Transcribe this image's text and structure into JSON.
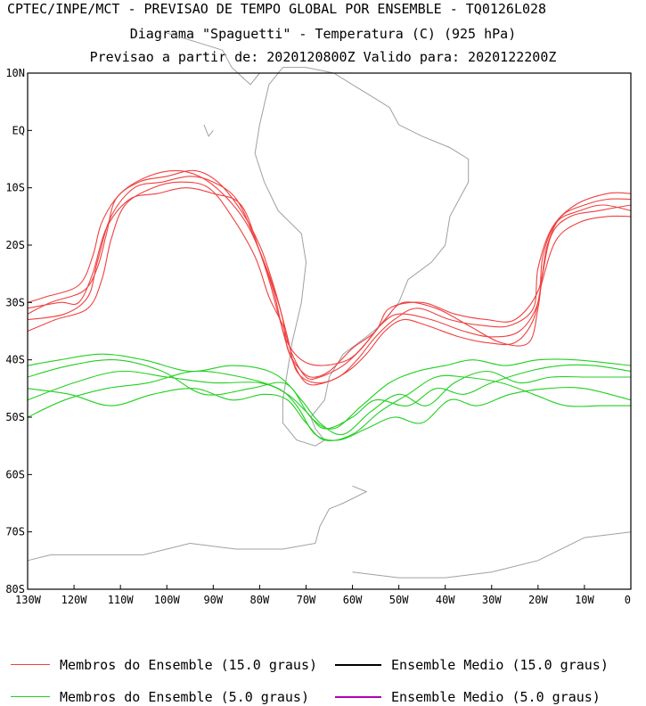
{
  "header": {
    "title_line1": "CPTEC/INPE/MCT - PREVISAO DE TEMPO GLOBAL POR ENSEMBLE - TQ0126L028",
    "title_line2": "Diagrama \"Spaguetti\" - Temperatura (C) (925 hPa)",
    "title_line3": "Previsao a partir de: 2020120800Z  Valido para: 2020122200Z"
  },
  "axes": {
    "lat_labels": [
      "10N",
      "EQ",
      "10S",
      "20S",
      "30S",
      "40S",
      "50S",
      "60S",
      "70S",
      "80S"
    ],
    "lat_values": [
      10,
      0,
      -10,
      -20,
      -30,
      -40,
      -50,
      -60,
      -70,
      -80
    ],
    "lon_labels": [
      "130W",
      "120W",
      "110W",
      "100W",
      "90W",
      "80W",
      "70W",
      "60W",
      "50W",
      "40W",
      "30W",
      "20W",
      "10W",
      "0"
    ],
    "lon_values": [
      -130,
      -120,
      -110,
      -100,
      -90,
      -80,
      -70,
      -60,
      -50,
      -40,
      -30,
      -20,
      -10,
      0
    ],
    "lon_range": [
      -130,
      0
    ],
    "lat_range": [
      -80,
      10
    ]
  },
  "colors": {
    "coast": "#a0a0a0",
    "member_15": "#f04040",
    "member_5": "#20d020",
    "mean_15": "#000000",
    "mean_5": "#b000b0"
  },
  "legend": {
    "members_15": "Membros do Ensemble (15.0 graus)",
    "mean_15": "Ensemble Medio (15.0 graus)",
    "members_5": "Membros do Ensemble (5.0 graus)",
    "mean_5": "Ensemble Medio (5.0 graus)"
  },
  "isotherm_15_lonlat": [
    [
      [
        -130,
        -32
      ],
      [
        -125,
        -30
      ],
      [
        -118,
        -28
      ],
      [
        -115,
        -24
      ],
      [
        -113,
        -18
      ],
      [
        -111,
        -12
      ],
      [
        -106,
        -9
      ],
      [
        -100,
        -8
      ],
      [
        -94,
        -7
      ],
      [
        -89,
        -9
      ],
      [
        -84,
        -14
      ],
      [
        -80,
        -20
      ],
      [
        -77,
        -27
      ],
      [
        -75,
        -33
      ],
      [
        -74,
        -38
      ],
      [
        -72,
        -41
      ],
      [
        -69,
        -43
      ],
      [
        -65,
        -42
      ],
      [
        -60,
        -38
      ],
      [
        -55,
        -35
      ],
      [
        -52,
        -31
      ],
      [
        -45,
        -30
      ],
      [
        -38,
        -32
      ],
      [
        -31,
        -33
      ],
      [
        -25,
        -33
      ],
      [
        -20,
        -28
      ],
      [
        -18,
        -20
      ],
      [
        -15,
        -15
      ],
      [
        -10,
        -13
      ],
      [
        -5,
        -12
      ],
      [
        0,
        -12
      ]
    ],
    [
      [
        -130,
        -35
      ],
      [
        -124,
        -33
      ],
      [
        -117,
        -31
      ],
      [
        -114,
        -26
      ],
      [
        -112,
        -19
      ],
      [
        -109,
        -13
      ],
      [
        -103,
        -10
      ],
      [
        -97,
        -9
      ],
      [
        -91,
        -10
      ],
      [
        -86,
        -15
      ],
      [
        -81,
        -22
      ],
      [
        -78,
        -29
      ],
      [
        -75,
        -34
      ],
      [
        -73,
        -39
      ],
      [
        -70,
        -43
      ],
      [
        -67,
        -43
      ],
      [
        -62,
        -41
      ],
      [
        -58,
        -38
      ],
      [
        -54,
        -34
      ],
      [
        -50,
        -32
      ],
      [
        -43,
        -33
      ],
      [
        -36,
        -35
      ],
      [
        -30,
        -36
      ],
      [
        -24,
        -35
      ],
      [
        -20,
        -30
      ],
      [
        -19,
        -22
      ],
      [
        -16,
        -16
      ],
      [
        -11,
        -14
      ],
      [
        -6,
        -13
      ],
      [
        0,
        -14
      ]
    ],
    [
      [
        -130,
        -30
      ],
      [
        -126,
        -29
      ],
      [
        -119,
        -27
      ],
      [
        -116,
        -22
      ],
      [
        -114,
        -16
      ],
      [
        -110,
        -11
      ],
      [
        -104,
        -8
      ],
      [
        -98,
        -7
      ],
      [
        -93,
        -8
      ],
      [
        -88,
        -11
      ],
      [
        -83,
        -16
      ],
      [
        -79,
        -23
      ],
      [
        -76,
        -30
      ],
      [
        -74,
        -36
      ],
      [
        -72,
        -42
      ],
      [
        -68,
        -44
      ],
      [
        -63,
        -43
      ],
      [
        -59,
        -40
      ],
      [
        -55,
        -36
      ],
      [
        -51,
        -33
      ],
      [
        -46,
        -31
      ],
      [
        -39,
        -33
      ],
      [
        -32,
        -34
      ],
      [
        -26,
        -34
      ],
      [
        -21,
        -31
      ],
      [
        -20,
        -24
      ],
      [
        -17,
        -17
      ],
      [
        -12,
        -13
      ],
      [
        -5,
        -11
      ],
      [
        0,
        -11
      ]
    ],
    [
      [
        -130,
        -33
      ],
      [
        -122,
        -32
      ],
      [
        -117,
        -29
      ],
      [
        -115,
        -23
      ],
      [
        -112,
        -15
      ],
      [
        -107,
        -10
      ],
      [
        -101,
        -9
      ],
      [
        -95,
        -8
      ],
      [
        -90,
        -9
      ],
      [
        -85,
        -12
      ],
      [
        -81,
        -19
      ],
      [
        -78,
        -26
      ],
      [
        -76,
        -32
      ],
      [
        -74,
        -37
      ],
      [
        -71,
        -40
      ],
      [
        -67,
        -41
      ],
      [
        -61,
        -40
      ],
      [
        -57,
        -37
      ],
      [
        -53,
        -33
      ],
      [
        -49,
        -30
      ],
      [
        -42,
        -31
      ],
      [
        -35,
        -34
      ],
      [
        -28,
        -37
      ],
      [
        -22,
        -37
      ],
      [
        -20,
        -31
      ],
      [
        -19,
        -25
      ],
      [
        -17,
        -18
      ],
      [
        -13,
        -15
      ],
      [
        -7,
        -14
      ],
      [
        0,
        -13
      ]
    ],
    [
      [
        -130,
        -31
      ],
      [
        -123,
        -30
      ],
      [
        -119,
        -30
      ],
      [
        -116,
        -25
      ],
      [
        -113,
        -17
      ],
      [
        -108,
        -12
      ],
      [
        -102,
        -11
      ],
      [
        -96,
        -10
      ],
      [
        -90,
        -11
      ],
      [
        -84,
        -13
      ],
      [
        -80,
        -21
      ],
      [
        -77,
        -28
      ],
      [
        -75,
        -35
      ],
      [
        -73,
        -40
      ],
      [
        -70,
        -44
      ],
      [
        -66,
        -44
      ],
      [
        -61,
        -42
      ],
      [
        -57,
        -39
      ],
      [
        -53,
        -35
      ],
      [
        -49,
        -33
      ],
      [
        -44,
        -34
      ],
      [
        -37,
        -36
      ],
      [
        -31,
        -37
      ],
      [
        -25,
        -37
      ],
      [
        -21,
        -33
      ],
      [
        -19,
        -26
      ],
      [
        -16,
        -19
      ],
      [
        -11,
        -16
      ],
      [
        -5,
        -15
      ],
      [
        0,
        -15
      ]
    ]
  ],
  "isotherm_5_lonlat": [
    [
      [
        -130,
        -47
      ],
      [
        -120,
        -44
      ],
      [
        -110,
        -42
      ],
      [
        -100,
        -43
      ],
      [
        -90,
        -44
      ],
      [
        -80,
        -44
      ],
      [
        -74,
        -46
      ],
      [
        -70,
        -49
      ],
      [
        -66,
        -52
      ],
      [
        -60,
        -50
      ],
      [
        -55,
        -47
      ],
      [
        -48,
        -48
      ],
      [
        -42,
        -45
      ],
      [
        -36,
        -46
      ],
      [
        -30,
        -44
      ],
      [
        -22,
        -42
      ],
      [
        -15,
        -41
      ],
      [
        -8,
        -41
      ],
      [
        0,
        -42
      ]
    ],
    [
      [
        -130,
        -43
      ],
      [
        -121,
        -41
      ],
      [
        -111,
        -40
      ],
      [
        -101,
        -42
      ],
      [
        -92,
        -46
      ],
      [
        -82,
        -45
      ],
      [
        -75,
        -44
      ],
      [
        -71,
        -47
      ],
      [
        -67,
        -51
      ],
      [
        -62,
        -53
      ],
      [
        -56,
        -49
      ],
      [
        -50,
        -46
      ],
      [
        -44,
        -48
      ],
      [
        -38,
        -44
      ],
      [
        -31,
        -42
      ],
      [
        -24,
        -44
      ],
      [
        -17,
        -43
      ],
      [
        -9,
        -43
      ],
      [
        0,
        -43
      ]
    ],
    [
      [
        -130,
        -50
      ],
      [
        -122,
        -47
      ],
      [
        -113,
        -45
      ],
      [
        -104,
        -44
      ],
      [
        -94,
        -42
      ],
      [
        -84,
        -43
      ],
      [
        -76,
        -45
      ],
      [
        -72,
        -48
      ],
      [
        -68,
        -53
      ],
      [
        -63,
        -54
      ],
      [
        -57,
        -52
      ],
      [
        -51,
        -50
      ],
      [
        -45,
        -51
      ],
      [
        -39,
        -47
      ],
      [
        -33,
        -48
      ],
      [
        -26,
        -46
      ],
      [
        -18,
        -45
      ],
      [
        -10,
        -45
      ],
      [
        0,
        -47
      ]
    ],
    [
      [
        -130,
        -41
      ],
      [
        -123,
        -40
      ],
      [
        -114,
        -39
      ],
      [
        -105,
        -40
      ],
      [
        -95,
        -42
      ],
      [
        -86,
        -41
      ],
      [
        -78,
        -42
      ],
      [
        -73,
        -45
      ],
      [
        -69,
        -50
      ],
      [
        -64,
        -52
      ],
      [
        -58,
        -48
      ],
      [
        -52,
        -44
      ],
      [
        -46,
        -42
      ],
      [
        -40,
        -41
      ],
      [
        -34,
        -40
      ],
      [
        -27,
        -41
      ],
      [
        -20,
        -40
      ],
      [
        -12,
        -40
      ],
      [
        0,
        -41
      ]
    ],
    [
      [
        -130,
        -45
      ],
      [
        -121,
        -46
      ],
      [
        -112,
        -48
      ],
      [
        -103,
        -46
      ],
      [
        -94,
        -45
      ],
      [
        -86,
        -47
      ],
      [
        -79,
        -46
      ],
      [
        -74,
        -47
      ],
      [
        -70,
        -51
      ],
      [
        -66,
        -54
      ],
      [
        -60,
        -53
      ],
      [
        -54,
        -49
      ],
      [
        -48,
        -46
      ],
      [
        -42,
        -43
      ],
      [
        -36,
        -43
      ],
      [
        -28,
        -44
      ],
      [
        -21,
        -46
      ],
      [
        -14,
        -48
      ],
      [
        -6,
        -48
      ],
      [
        0,
        -48
      ]
    ]
  ],
  "coast_lonlat": [
    [
      [
        -78,
        8
      ],
      [
        -80,
        1
      ],
      [
        -81,
        -4
      ],
      [
        -79,
        -9
      ],
      [
        -76,
        -14
      ],
      [
        -71,
        -18
      ],
      [
        -70,
        -23
      ],
      [
        -71,
        -30
      ],
      [
        -73,
        -37
      ],
      [
        -74,
        -42
      ],
      [
        -75,
        -47
      ],
      [
        -75,
        -51
      ],
      [
        -72,
        -54
      ],
      [
        -68,
        -55
      ],
      [
        -66,
        -54
      ],
      [
        -68,
        -52
      ],
      [
        -69,
        -50
      ],
      [
        -66,
        -47
      ],
      [
        -65,
        -43
      ],
      [
        -62,
        -39
      ],
      [
        -57,
        -36
      ],
      [
        -54,
        -34
      ],
      [
        -50,
        -30
      ],
      [
        -48,
        -26
      ],
      [
        -43,
        -23
      ],
      [
        -40,
        -20
      ],
      [
        -39,
        -15
      ],
      [
        -35,
        -9
      ],
      [
        -35,
        -5
      ],
      [
        -39,
        -3
      ],
      [
        -45,
        -1
      ],
      [
        -50,
        1
      ],
      [
        -52,
        4
      ],
      [
        -56,
        6
      ],
      [
        -60,
        8
      ],
      [
        -64,
        10
      ],
      [
        -70,
        11
      ],
      [
        -75,
        11
      ],
      [
        -78,
        8
      ]
    ],
    [
      [
        -80,
        10
      ],
      [
        -82,
        8
      ],
      [
        -86,
        11
      ],
      [
        -88,
        14
      ],
      [
        -92,
        15
      ],
      [
        -96,
        16
      ],
      [
        -100,
        17
      ]
    ],
    [
      [
        -60,
        -62
      ],
      [
        -57,
        -63
      ],
      [
        -62,
        -65
      ],
      [
        -65,
        -66
      ],
      [
        -67,
        -69
      ],
      [
        -68,
        -72
      ],
      [
        -75,
        -73
      ],
      [
        -85,
        -73
      ],
      [
        -95,
        -72
      ],
      [
        -105,
        -74
      ],
      [
        -115,
        -74
      ],
      [
        -125,
        -74
      ],
      [
        -130,
        -75
      ]
    ],
    [
      [
        -60,
        -77
      ],
      [
        -50,
        -78
      ],
      [
        -40,
        -78
      ],
      [
        -30,
        -77
      ],
      [
        -20,
        -75
      ],
      [
        -10,
        -71
      ],
      [
        0,
        -70
      ]
    ],
    [
      [
        -92,
        1
      ],
      [
        -91,
        -1
      ],
      [
        -90,
        0
      ]
    ]
  ]
}
